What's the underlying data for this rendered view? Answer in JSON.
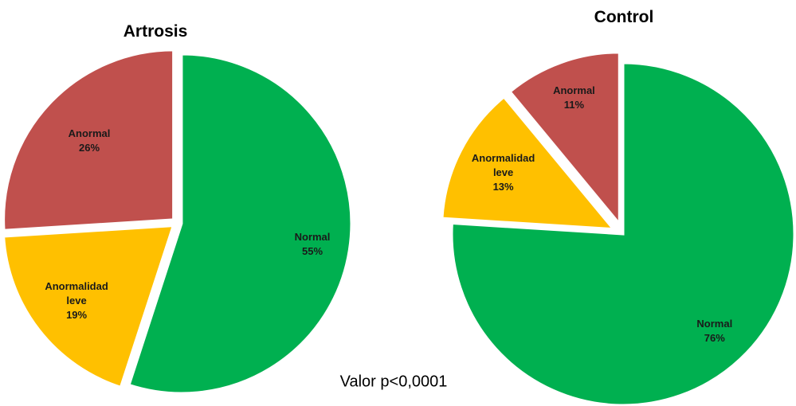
{
  "chart_data": [
    {
      "type": "pie",
      "title": "Artrosis",
      "categories": [
        "Normal",
        "Anormalidad leve",
        "Anormal"
      ],
      "values": [
        55,
        19,
        26
      ],
      "value_labels": [
        "55%",
        "19%",
        "26%"
      ],
      "colors": [
        "#00b050",
        "#ffc000",
        "#c0504d"
      ]
    },
    {
      "type": "pie",
      "title": "Control",
      "categories": [
        "Normal",
        "Anormalidad leve",
        "Anormal"
      ],
      "values": [
        76,
        13,
        11
      ],
      "value_labels": [
        "76%",
        "13%",
        "11%"
      ],
      "colors": [
        "#00b050",
        "#ffc000",
        "#c0504d"
      ]
    }
  ],
  "annotation": "Valor p<0,0001"
}
